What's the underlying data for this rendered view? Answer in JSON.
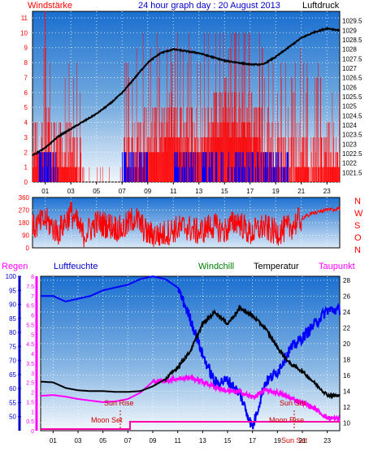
{
  "header": {
    "left_label": "Windstärke",
    "title": "24 hour graph day : 20 August 2013",
    "right_label": "Luftdruck"
  },
  "colors": {
    "wind": "#ff0000",
    "gust_blue": "#0000ff",
    "pressure": "#000000",
    "humidity": "#0000ff",
    "temperature": "#000000",
    "windchill": "#008000",
    "dewpoint": "#ff00ff",
    "rain": "#ff00aa",
    "axis_navy": "#000080",
    "panel_top": "#1e7ad6",
    "panel_bottom": "#e8f1fb"
  },
  "x_ticks": [
    "01",
    "03",
    "05",
    "07",
    "09",
    "11",
    "13",
    "15",
    "17",
    "19",
    "21",
    "23"
  ],
  "x_ticks_bottom": [
    "01",
    "03",
    "05",
    "07",
    "09",
    "11",
    "13",
    "15",
    "17",
    "19",
    "21",
    "23"
  ],
  "chart_data": [
    {
      "type": "line",
      "title": "24 hour graph day : 20 August 2013",
      "xlabel": "",
      "ylabel_left": "Windstärke",
      "ylabel_right": "Luftdruck",
      "ylim_left": [
        0,
        11
      ],
      "ylim_right": [
        1021.0,
        1030.0
      ],
      "left_ticks": [
        "0",
        "1",
        "2",
        "3",
        "4",
        "5",
        "6",
        "7",
        "8",
        "9",
        "10",
        "11"
      ],
      "right_ticks": [
        "1021.5",
        "1022",
        "1022.5",
        "1023",
        "1023.5",
        "1024",
        "1024.5",
        "1025",
        "1025.5",
        "1026",
        "1026.5",
        "1027",
        "1027.5",
        "1028",
        "1028.5",
        "1029",
        "1029.5"
      ],
      "series": [
        {
          "name": "Luftdruck",
          "x": [
            0,
            1,
            2,
            3,
            4,
            5,
            6,
            7,
            8,
            9,
            10,
            11,
            12,
            13,
            14,
            15,
            16,
            17,
            18,
            19,
            20,
            21,
            22,
            23,
            24
          ],
          "values": [
            1022.4,
            1022.8,
            1023.4,
            1023.8,
            1024.2,
            1024.6,
            1025.1,
            1025.7,
            1026.5,
            1027.3,
            1027.8,
            1028.0,
            1027.9,
            1027.8,
            1027.6,
            1027.4,
            1027.3,
            1027.2,
            1027.2,
            1027.6,
            1028.1,
            1028.6,
            1028.9,
            1029.1,
            1029.0
          ]
        },
        {
          "name": "Windstärke",
          "x": [
            0,
            1,
            2,
            3,
            4,
            5,
            6,
            7,
            8,
            9,
            10,
            11,
            12,
            13,
            14,
            15,
            16,
            17,
            18,
            19,
            20,
            21,
            22,
            23,
            24
          ],
          "values": [
            2,
            3,
            2,
            2,
            1,
            0,
            0,
            1,
            2,
            3,
            3,
            4,
            3,
            3,
            4,
            5,
            4,
            4,
            3,
            2,
            1,
            2,
            1,
            2,
            2
          ]
        }
      ]
    },
    {
      "type": "line",
      "title": "",
      "ylabel_right": "",
      "ylim": [
        0,
        360
      ],
      "left_ticks": [
        "0",
        "90",
        "180",
        "270",
        "360"
      ],
      "right_labels": [
        "N",
        "W",
        "S",
        "O",
        "N"
      ],
      "series": [
        {
          "name": "",
          "x": [
            0,
            1,
            2,
            3,
            4,
            5,
            6,
            7,
            8,
            9,
            10,
            11,
            12,
            13,
            14,
            15,
            16,
            17,
            18,
            19,
            20,
            21,
            22,
            23,
            24
          ],
          "values": [
            140,
            200,
            110,
            250,
            90,
            180,
            160,
            130,
            220,
            100,
            90,
            130,
            150,
            110,
            160,
            120,
            200,
            100,
            150,
            110,
            140,
            210,
            250,
            270,
            280
          ]
        }
      ]
    },
    {
      "type": "line",
      "title": "",
      "labels": {
        "regen": "Regen",
        "luftfeuchte": "Luftfeuchte",
        "windchill": "Windchill",
        "temperatur": "Temperatur",
        "taupunkt": "Taupunkt"
      },
      "humidity_ticks": [
        "50",
        "55",
        "60",
        "65",
        "70",
        "75",
        "80",
        "85",
        "90",
        "95",
        "100"
      ],
      "rain_ticks": [
        "0",
        "0.5",
        "1",
        "1.5",
        "2",
        "2.5",
        "3",
        "3.5",
        "4",
        "4.5",
        "5",
        "5.5",
        "6",
        "6.5",
        "7",
        "7.5",
        "8"
      ],
      "temp_ticks": [
        "10",
        "12",
        "14",
        "16",
        "18",
        "20",
        "22",
        "24",
        "26",
        "28"
      ],
      "ylim_humidity": [
        45,
        100
      ],
      "ylim_temperature": [
        9,
        28.5
      ],
      "annotations": {
        "sun_rise": "Sun Rise",
        "sun_set": "Sun Set",
        "moon_set": "Moon Set",
        "moon_rise": "Moon Rise",
        "sun_set_bottom": "Sun Set"
      },
      "series": [
        {
          "name": "Luftfeuchte",
          "x": [
            0,
            1,
            2,
            3,
            4,
            5,
            6,
            7,
            8,
            9,
            10,
            11,
            12,
            13,
            14,
            15,
            16,
            17,
            18,
            19,
            20,
            21,
            22,
            23,
            24
          ],
          "values": [
            93,
            93,
            91,
            92,
            93,
            95,
            96,
            97,
            99,
            100,
            99,
            96,
            85,
            72,
            62,
            63,
            58,
            46,
            62,
            66,
            74,
            78,
            83,
            88,
            88
          ]
        },
        {
          "name": "Temperatur",
          "x": [
            0,
            1,
            2,
            3,
            4,
            5,
            6,
            7,
            8,
            9,
            10,
            11,
            12,
            13,
            14,
            15,
            16,
            17,
            18,
            19,
            20,
            21,
            22,
            23,
            24
          ],
          "values": [
            15.2,
            15.1,
            14.4,
            14.1,
            14.0,
            14.0,
            13.9,
            13.9,
            14.0,
            14.6,
            15.5,
            17.0,
            19.0,
            22.5,
            24.0,
            22.5,
            24.5,
            23.5,
            22.0,
            19.5,
            17.5,
            16.5,
            15.0,
            13.5,
            13.4
          ]
        },
        {
          "name": "Taupunkt",
          "x": [
            0,
            1,
            2,
            3,
            4,
            5,
            6,
            7,
            8,
            9,
            10,
            11,
            12,
            13,
            14,
            15,
            16,
            17,
            18,
            19,
            20,
            21,
            22,
            23,
            24
          ],
          "values": [
            13.4,
            13.5,
            13.3,
            13.0,
            12.8,
            12.6,
            12.7,
            13.0,
            13.8,
            15.2,
            15.3,
            15.6,
            15.7,
            15.2,
            14.5,
            14.0,
            13.9,
            13.2,
            14.1,
            13.8,
            13.1,
            12.6,
            11.8,
            10.6,
            10.5
          ]
        }
      ]
    }
  ]
}
